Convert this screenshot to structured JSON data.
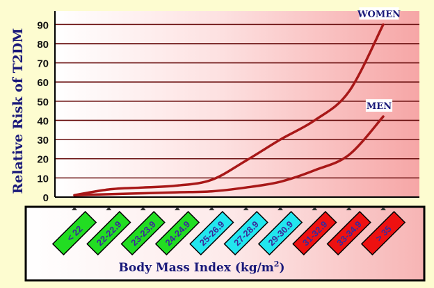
{
  "chart_data": {
    "type": "line",
    "title": "",
    "ylabel": "Relative Risk of T2DM",
    "xlabel_main": "Body Mass Index (kg/m",
    "xlabel_sup": "2",
    "xlabel_close": ")",
    "ylim": [
      0,
      97
    ],
    "yticks": [
      "0",
      "10",
      "20",
      "30",
      "40",
      "50",
      "60",
      "70",
      "80",
      "90"
    ],
    "ytick_values": [
      0,
      10,
      20,
      30,
      40,
      50,
      60,
      70,
      80,
      90
    ],
    "grid": true,
    "categories": [
      "< 22",
      "22-22.9",
      "23-23.9",
      "24-24.9",
      "25-26.9",
      "27-28.9",
      "29-30.9",
      "31-32.9",
      "33-34.9",
      "> 35"
    ],
    "category_colors": [
      "#22dd22",
      "#22dd22",
      "#22dd22",
      "#22dd22",
      "#22e6ee",
      "#22e6ee",
      "#22e6ee",
      "#ee1111",
      "#ee1111",
      "#ee1111"
    ],
    "series": [
      {
        "name": "WOMEN",
        "values": [
          1,
          4,
          5,
          6,
          9,
          19,
          30,
          40,
          55,
          90
        ]
      },
      {
        "name": "MEN",
        "values": [
          1,
          1.5,
          2,
          2.5,
          3,
          5,
          8,
          14,
          22,
          42
        ]
      }
    ],
    "line_color": "#a81818"
  }
}
